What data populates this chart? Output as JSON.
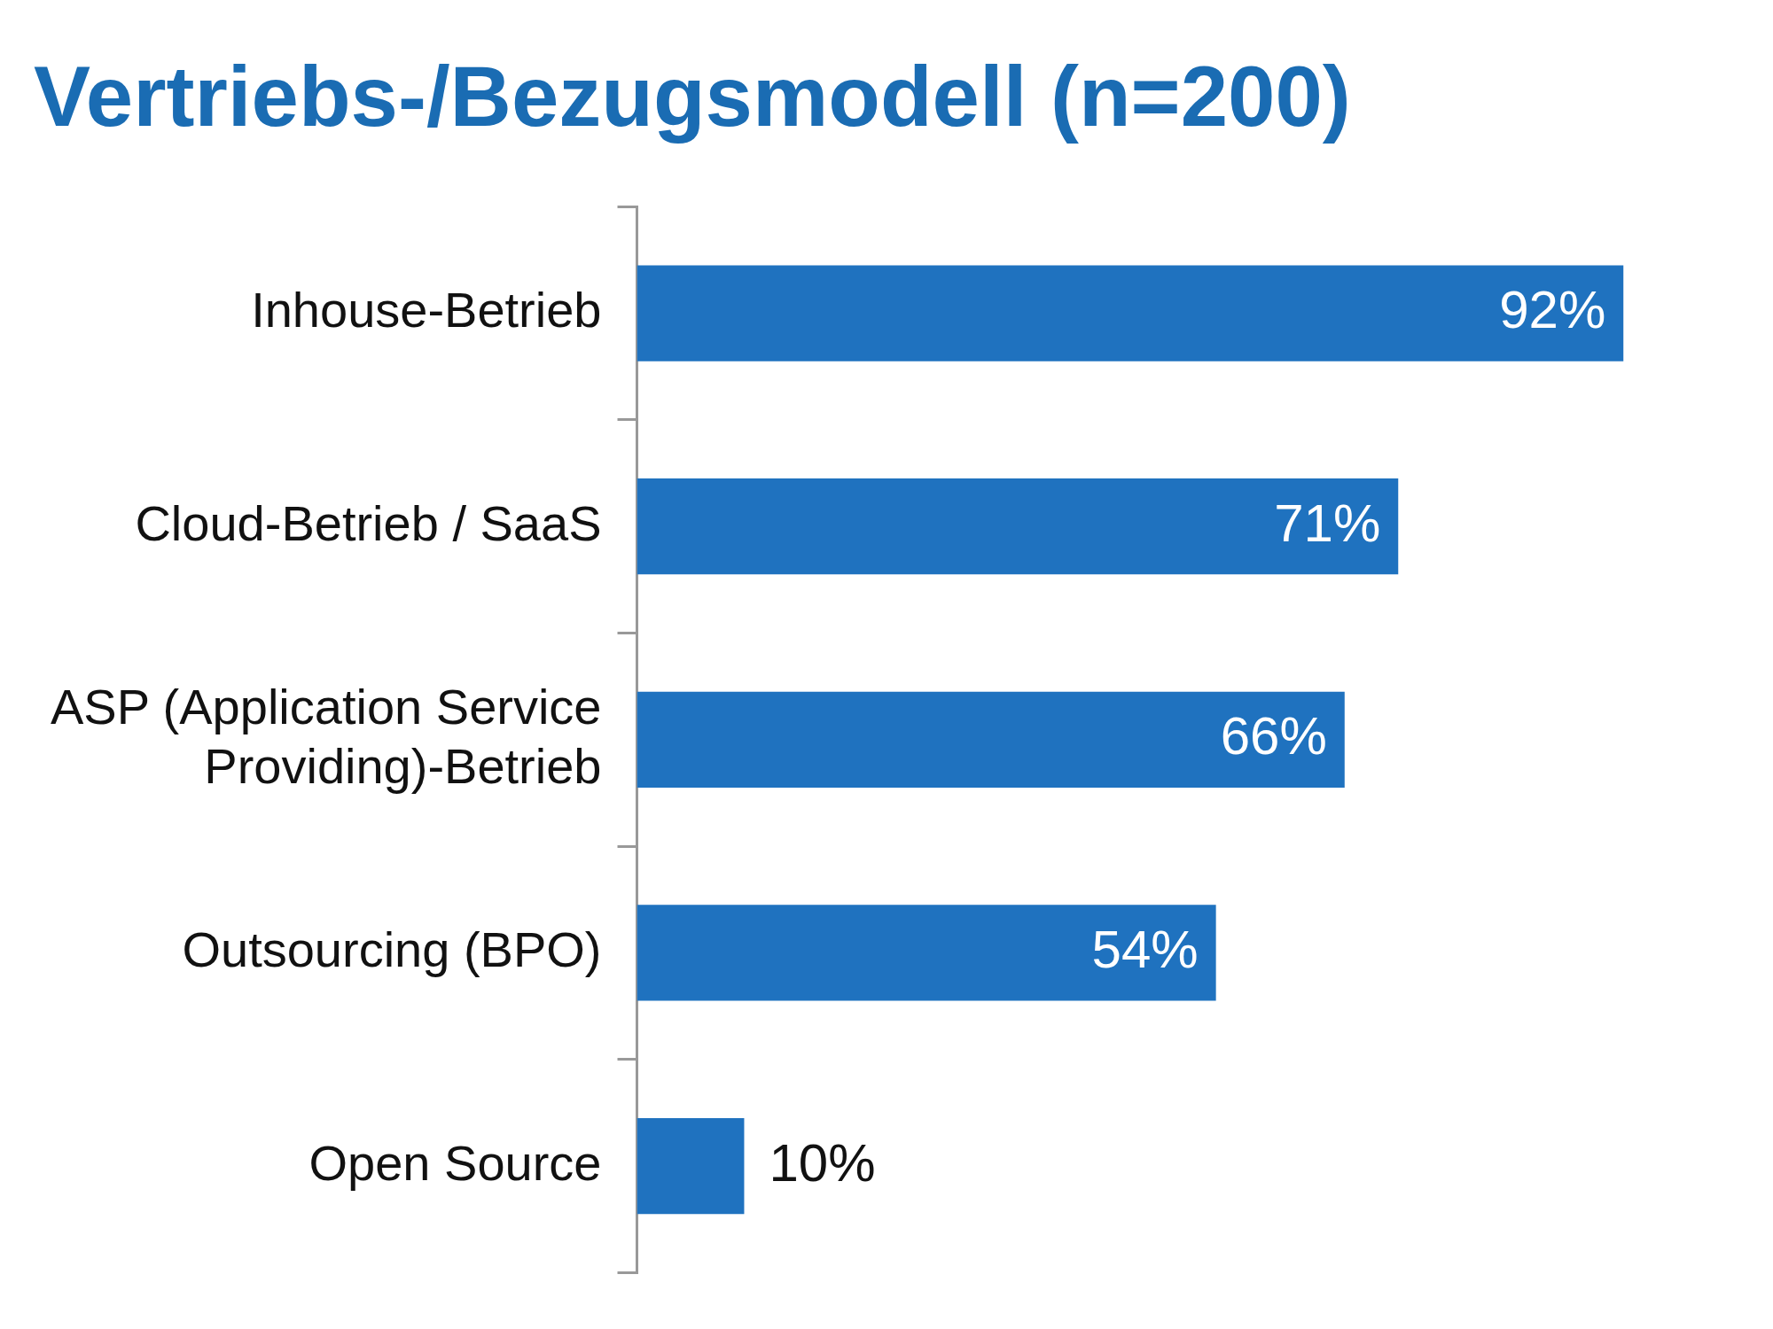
{
  "chart_data": {
    "type": "bar",
    "orientation": "horizontal",
    "title": "Vertriebs-/Bezugsmodell (n=200)",
    "categories": [
      "Inhouse-Betrieb",
      "Cloud-Betrieb / SaaS",
      "ASP (Application Service Providing)-Betrieb",
      "Outsourcing (BPO)",
      "Open Source"
    ],
    "values": [
      92,
      71,
      66,
      54,
      10
    ],
    "value_labels": [
      "92%",
      "71%",
      "66%",
      "54%",
      "10%"
    ],
    "color": "#1f72bf",
    "legend": false
  }
}
